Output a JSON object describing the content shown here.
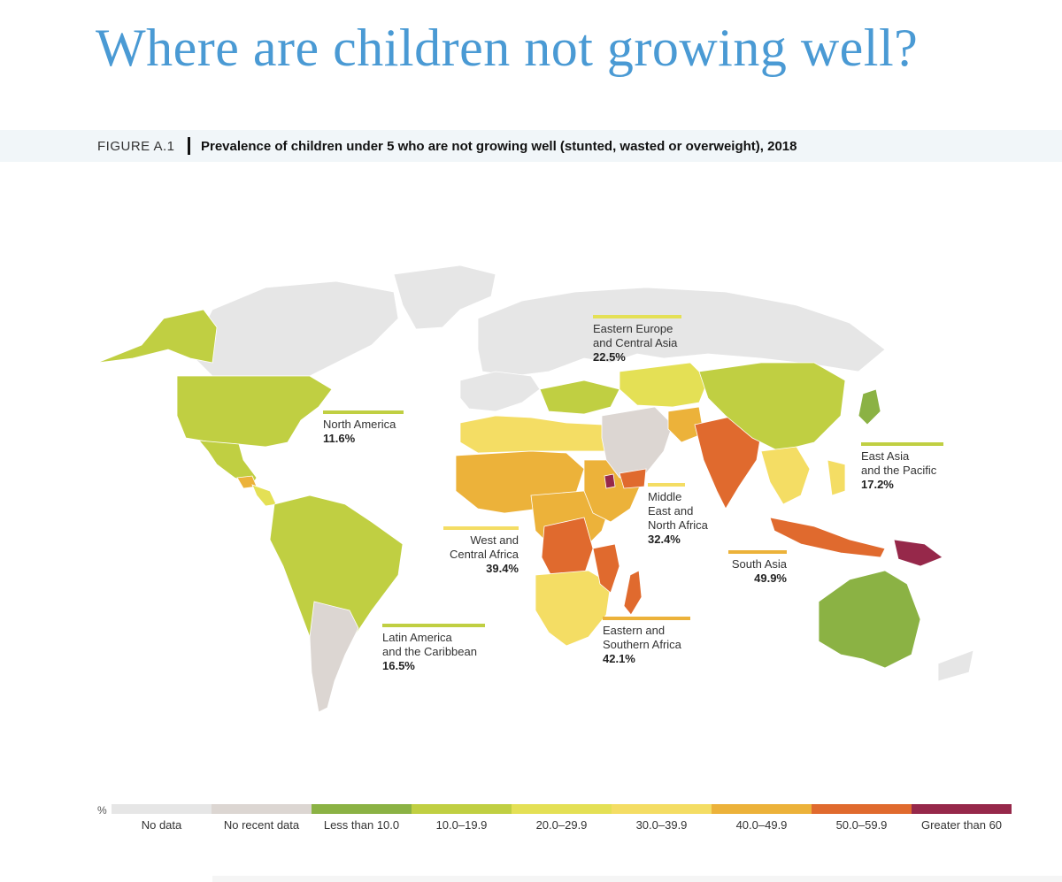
{
  "title": "Where are children not growing well?",
  "figure": {
    "label": "FIGURE A.1",
    "caption": "Prevalence of children under 5 who are not growing well (stunted, wasted or overweight), 2018"
  },
  "colors": {
    "no_data": "#e6e6e6",
    "no_recent_data": "#dcd6d2",
    "lt10": "#8bb244",
    "c10_19": "#c0cf42",
    "c20_29": "#e4e055",
    "c30_39": "#f4dd64",
    "c40_49": "#ecb23a",
    "c50_59": "#e06a2e",
    "gt60": "#96284a"
  },
  "regions": [
    {
      "name": "Eastern Europe\nand Central Asia",
      "value": "22.5%",
      "color": "#e4e055"
    },
    {
      "name": "North America",
      "value": "11.6%",
      "color": "#c0cf42"
    },
    {
      "name": "East Asia\nand the Pacific",
      "value": "17.2%",
      "color": "#c0cf42"
    },
    {
      "name": "Middle\nEast and\nNorth Africa",
      "value": "32.4%",
      "color": "#f4dd64"
    },
    {
      "name": "West and\nCentral Africa",
      "value": "39.4%",
      "color": "#f4dd64"
    },
    {
      "name": "South Asia",
      "value": "49.9%",
      "color": "#ecb23a"
    },
    {
      "name": "Latin America\nand the Caribbean",
      "value": "16.5%",
      "color": "#c0cf42"
    },
    {
      "name": "Eastern and\nSouthern Africa",
      "value": "42.1%",
      "color": "#ecb23a"
    }
  ],
  "legend": {
    "unit": "%",
    "items": [
      {
        "label": "No data",
        "color": "#e6e6e6"
      },
      {
        "label": "No recent data",
        "color": "#dcd6d2"
      },
      {
        "label": "Less than 10.0",
        "color": "#8bb244"
      },
      {
        "label": "10.0–19.9",
        "color": "#c0cf42"
      },
      {
        "label": "20.0–29.9",
        "color": "#e4e055"
      },
      {
        "label": "30.0–39.9",
        "color": "#f4dd64"
      },
      {
        "label": "40.0–49.9",
        "color": "#ecb23a"
      },
      {
        "label": "50.0–59.9",
        "color": "#e06a2e"
      },
      {
        "label": "Greater than 60",
        "color": "#96284a"
      }
    ]
  }
}
